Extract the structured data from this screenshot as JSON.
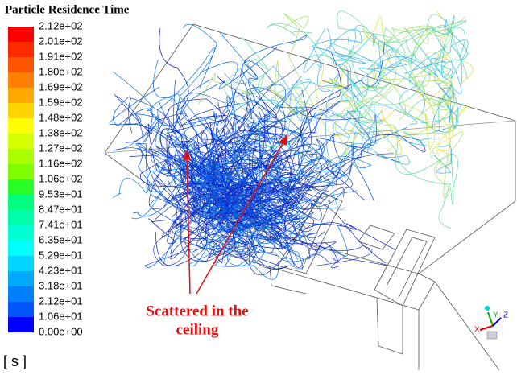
{
  "title": "Particle Residence Time",
  "legend": {
    "labels": [
      "2.12e+02",
      "2.01e+02",
      "1.91e+02",
      "1.80e+02",
      "1.69e+02",
      "1.59e+02",
      "1.48e+02",
      "1.38e+02",
      "1.27e+02",
      "1.16e+02",
      "1.06e+02",
      "9.53e+01",
      "8.47e+01",
      "7.41e+01",
      "6.35e+01",
      "5.29e+01",
      "4.23e+01",
      "3.18e+01",
      "2.12e+01",
      "1.06e+01",
      "0.00e+00"
    ],
    "colors": [
      "#ff0000",
      "#ff2a00",
      "#ff5500",
      "#ff7f00",
      "#ffaa00",
      "#ffd400",
      "#ffff00",
      "#d4ff00",
      "#aaff00",
      "#7fff00",
      "#2aff2a",
      "#00ff7f",
      "#00ffaa",
      "#00ffd4",
      "#00ffff",
      "#00d4ff",
      "#00aaff",
      "#007fff",
      "#0055ff",
      "#0000ff"
    ],
    "unit": "[ s ]"
  },
  "annotation": {
    "lines": [
      "Scattered in the",
      "ceiling"
    ]
  },
  "axes": [
    "X",
    "Y",
    "Z"
  ]
}
